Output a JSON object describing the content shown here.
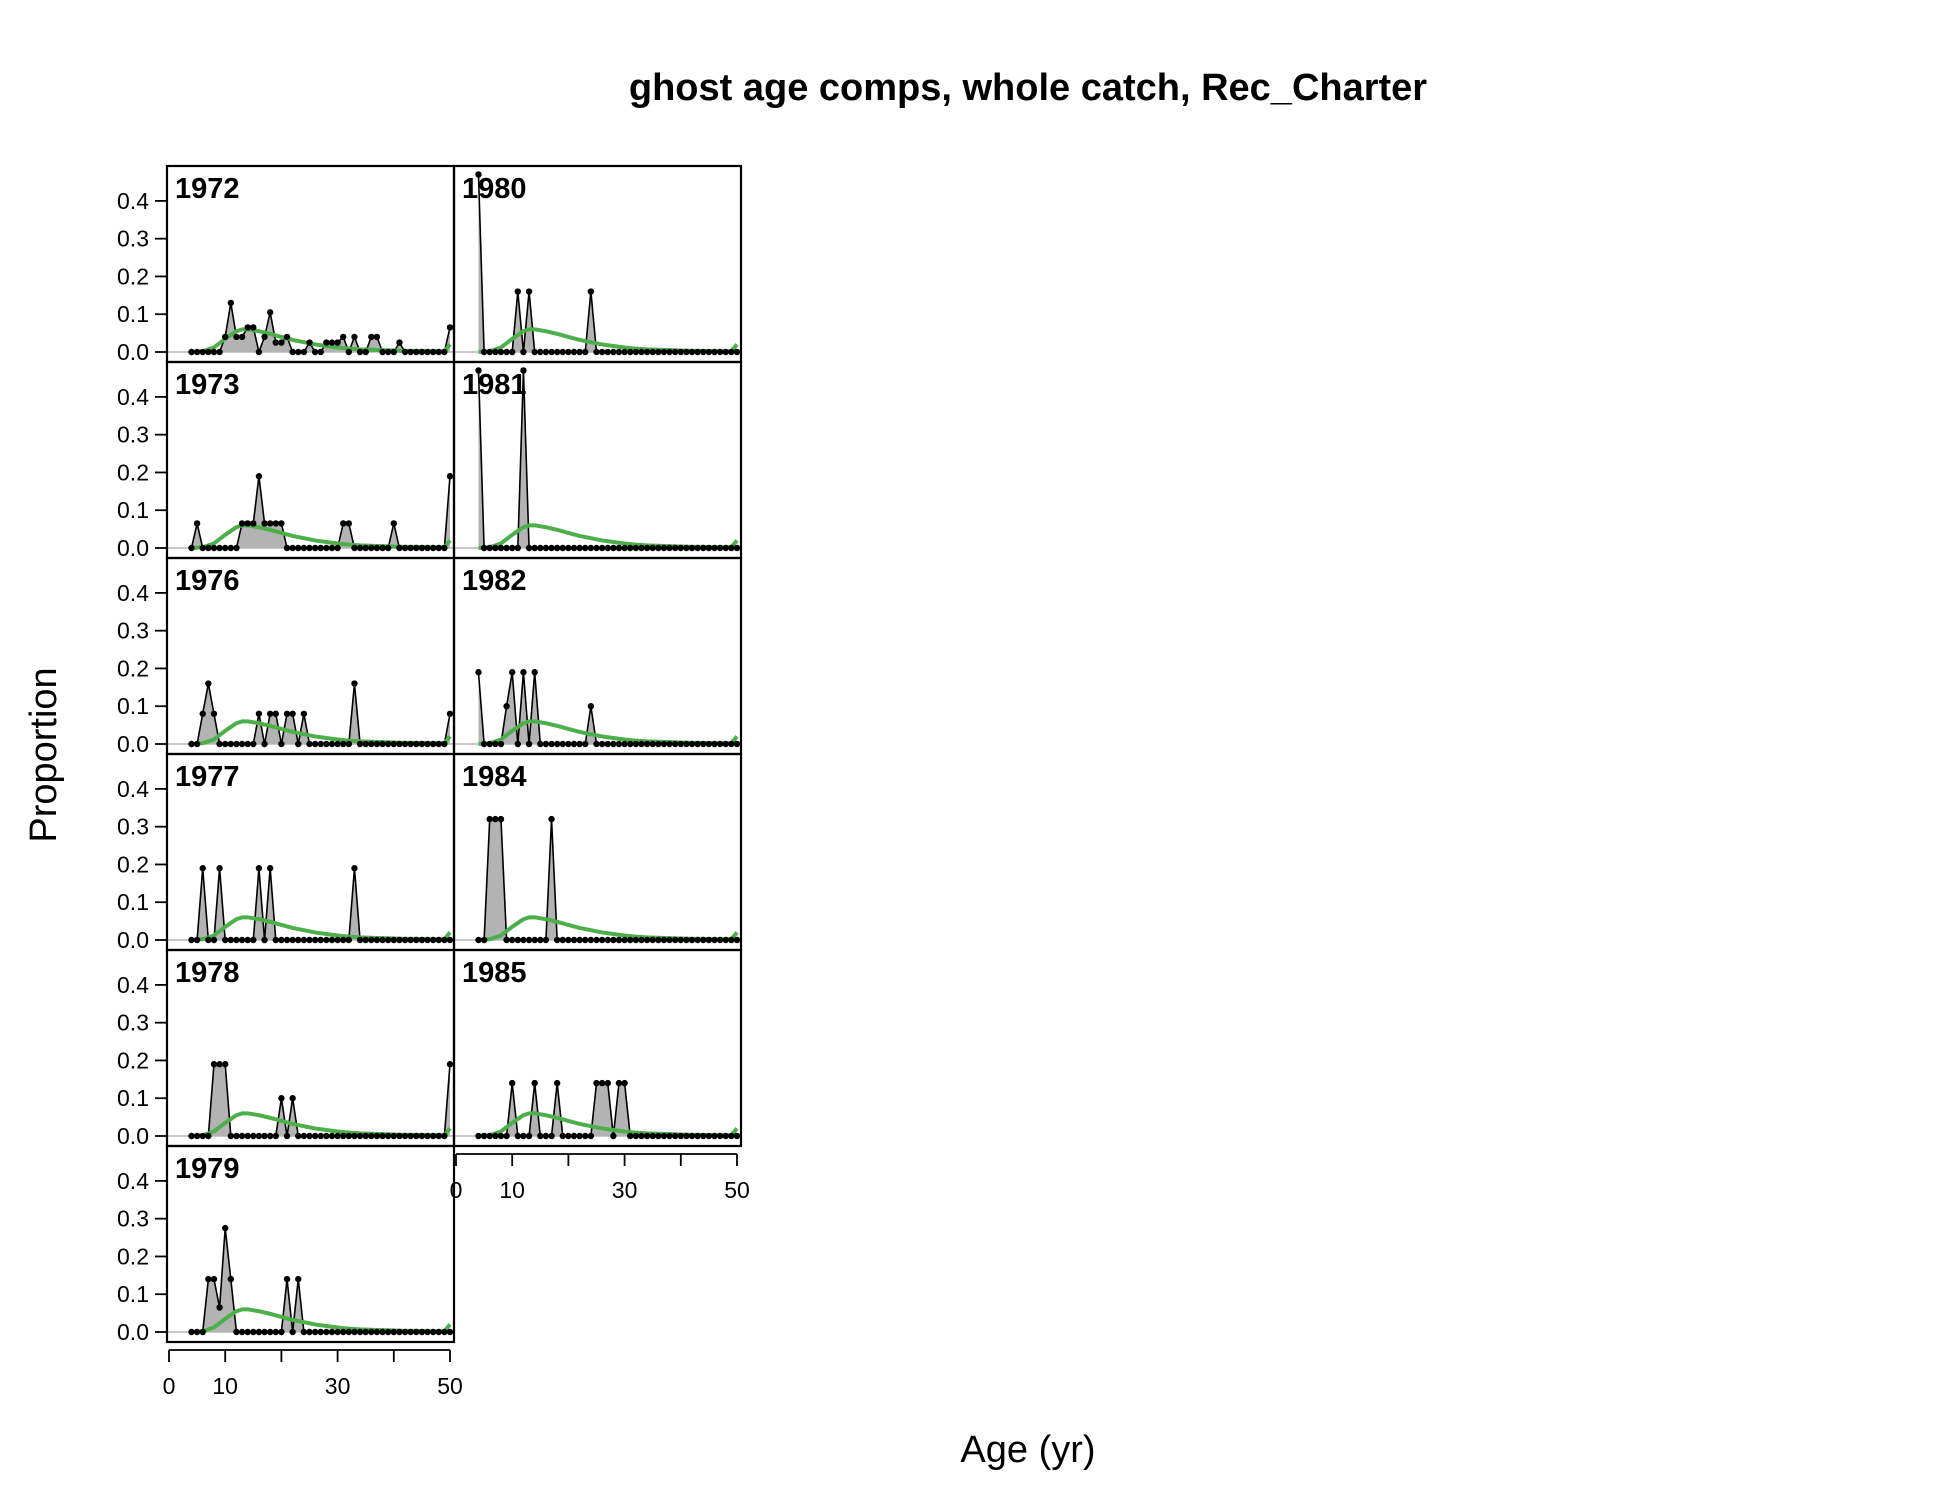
{
  "chart_data": {
    "type": "area",
    "title": "ghost age comps, whole catch, Rec_Charter",
    "xlabel": "Age (yr)",
    "ylabel": "Proportion",
    "xlim": [
      0,
      50
    ],
    "ylim": [
      0,
      0.45
    ],
    "x_ticks": [
      0,
      10,
      30,
      50
    ],
    "y_ticks": [
      "0.0",
      "0.1",
      "0.2",
      "0.3",
      "0.4"
    ],
    "ages": [
      4,
      50
    ],
    "colors": {
      "observed_fill": "#b3b3b3",
      "observed_line": "#000000",
      "expected_line": "#4daf4a"
    },
    "panels": [
      {
        "year": "1972",
        "observed": [
          [
            4,
            0
          ],
          [
            5,
            0
          ],
          [
            6,
            0
          ],
          [
            7,
            0
          ],
          [
            8,
            0
          ],
          [
            9,
            0
          ],
          [
            10,
            0.04
          ],
          [
            11,
            0.13
          ],
          [
            12,
            0.04
          ],
          [
            13,
            0.04
          ],
          [
            14,
            0.065
          ],
          [
            15,
            0.065
          ],
          [
            16,
            0
          ],
          [
            17,
            0.04
          ],
          [
            18,
            0.105
          ],
          [
            19,
            0.025
          ],
          [
            20,
            0.025
          ],
          [
            21,
            0.04
          ],
          [
            22,
            0
          ],
          [
            23,
            0
          ],
          [
            24,
            0
          ],
          [
            25,
            0.025
          ],
          [
            26,
            0
          ],
          [
            27,
            0
          ],
          [
            28,
            0.025
          ],
          [
            29,
            0.025
          ],
          [
            30,
            0.025
          ],
          [
            31,
            0.04
          ],
          [
            32,
            0
          ],
          [
            33,
            0.04
          ],
          [
            34,
            0
          ],
          [
            35,
            0
          ],
          [
            36,
            0.04
          ],
          [
            37,
            0.04
          ],
          [
            38,
            0
          ],
          [
            39,
            0
          ],
          [
            40,
            0
          ],
          [
            41,
            0.025
          ],
          [
            42,
            0
          ],
          [
            50,
            0.065
          ]
        ]
      },
      {
        "year": "1973",
        "observed": [
          [
            4,
            0
          ],
          [
            5,
            0.065
          ],
          [
            6,
            0
          ],
          [
            12,
            0
          ],
          [
            13,
            0.065
          ],
          [
            14,
            0.065
          ],
          [
            15,
            0.065
          ],
          [
            16,
            0.19
          ],
          [
            17,
            0.065
          ],
          [
            18,
            0.065
          ],
          [
            19,
            0.065
          ],
          [
            20,
            0.065
          ],
          [
            21,
            0
          ],
          [
            30,
            0
          ],
          [
            31,
            0.065
          ],
          [
            32,
            0.065
          ],
          [
            33,
            0
          ],
          [
            39,
            0
          ],
          [
            40,
            0.065
          ],
          [
            41,
            0
          ],
          [
            49,
            0
          ],
          [
            50,
            0.19
          ]
        ]
      },
      {
        "year": "1976",
        "observed": [
          [
            4,
            0
          ],
          [
            5,
            0
          ],
          [
            6,
            0.08
          ],
          [
            7,
            0.16
          ],
          [
            8,
            0.08
          ],
          [
            9,
            0
          ],
          [
            15,
            0
          ],
          [
            16,
            0.08
          ],
          [
            17,
            0
          ],
          [
            18,
            0.08
          ],
          [
            19,
            0.08
          ],
          [
            20,
            0
          ],
          [
            21,
            0.08
          ],
          [
            22,
            0.08
          ],
          [
            23,
            0
          ],
          [
            24,
            0.08
          ],
          [
            25,
            0
          ],
          [
            32,
            0
          ],
          [
            33,
            0.16
          ],
          [
            34,
            0
          ],
          [
            49,
            0
          ],
          [
            50,
            0.08
          ]
        ]
      },
      {
        "year": "1977",
        "observed": [
          [
            4,
            0
          ],
          [
            5,
            0
          ],
          [
            6,
            0.19
          ],
          [
            7,
            0
          ],
          [
            8,
            0
          ],
          [
            9,
            0.19
          ],
          [
            10,
            0
          ],
          [
            15,
            0
          ],
          [
            16,
            0.19
          ],
          [
            17,
            0
          ],
          [
            18,
            0.19
          ],
          [
            19,
            0
          ],
          [
            32,
            0
          ],
          [
            33,
            0.19
          ],
          [
            34,
            0
          ]
        ]
      },
      {
        "year": "1978",
        "observed": [
          [
            4,
            0
          ],
          [
            5,
            0
          ],
          [
            6,
            0
          ],
          [
            7,
            0
          ],
          [
            8,
            0.19
          ],
          [
            9,
            0.19
          ],
          [
            10,
            0.19
          ],
          [
            11,
            0
          ],
          [
            19,
            0
          ],
          [
            20,
            0.1
          ],
          [
            21,
            0
          ],
          [
            22,
            0.1
          ],
          [
            23,
            0
          ],
          [
            49,
            0
          ],
          [
            50,
            0.19
          ]
        ]
      },
      {
        "year": "1979",
        "observed": [
          [
            4,
            0
          ],
          [
            5,
            0
          ],
          [
            6,
            0
          ],
          [
            7,
            0.14
          ],
          [
            8,
            0.14
          ],
          [
            9,
            0.065
          ],
          [
            10,
            0.275
          ],
          [
            11,
            0.14
          ],
          [
            12,
            0
          ],
          [
            20,
            0
          ],
          [
            21,
            0.14
          ],
          [
            22,
            0
          ],
          [
            23,
            0.14
          ],
          [
            24,
            0
          ]
        ]
      },
      {
        "year": "1980",
        "observed": [
          [
            4,
            0.47
          ],
          [
            5,
            0
          ],
          [
            10,
            0
          ],
          [
            11,
            0.16
          ],
          [
            12,
            0
          ],
          [
            13,
            0.16
          ],
          [
            14,
            0
          ],
          [
            23,
            0
          ],
          [
            24,
            0.16
          ],
          [
            25,
            0
          ]
        ]
      },
      {
        "year": "1981",
        "observed": [
          [
            4,
            0.47
          ],
          [
            5,
            0
          ],
          [
            11,
            0
          ],
          [
            12,
            0.47
          ],
          [
            13,
            0
          ]
        ]
      },
      {
        "year": "1982",
        "observed": [
          [
            4,
            0.19
          ],
          [
            5,
            0
          ],
          [
            8,
            0
          ],
          [
            9,
            0.1
          ],
          [
            10,
            0.19
          ],
          [
            11,
            0
          ],
          [
            12,
            0.19
          ],
          [
            13,
            0
          ],
          [
            14,
            0.19
          ],
          [
            15,
            0
          ],
          [
            23,
            0
          ],
          [
            24,
            0.1
          ],
          [
            25,
            0
          ]
        ]
      },
      {
        "year": "1984",
        "observed": [
          [
            4,
            0
          ],
          [
            5,
            0
          ],
          [
            6,
            0.32
          ],
          [
            7,
            0.32
          ],
          [
            8,
            0.32
          ],
          [
            9,
            0
          ],
          [
            16,
            0
          ],
          [
            17,
            0.32
          ],
          [
            18,
            0
          ]
        ]
      },
      {
        "year": "1985",
        "observed": [
          [
            4,
            0
          ],
          [
            5,
            0
          ],
          [
            9,
            0
          ],
          [
            10,
            0.14
          ],
          [
            11,
            0
          ],
          [
            13,
            0
          ],
          [
            14,
            0.14
          ],
          [
            15,
            0
          ],
          [
            17,
            0
          ],
          [
            18,
            0.14
          ],
          [
            19,
            0
          ],
          [
            24,
            0
          ],
          [
            25,
            0.14
          ],
          [
            26,
            0.14
          ],
          [
            27,
            0.14
          ],
          [
            28,
            0
          ],
          [
            29,
            0.14
          ],
          [
            30,
            0.14
          ],
          [
            31,
            0
          ]
        ]
      }
    ],
    "expected_curve": [
      [
        4,
        0
      ],
      [
        6,
        0.002
      ],
      [
        8,
        0.012
      ],
      [
        10,
        0.035
      ],
      [
        12,
        0.055
      ],
      [
        13,
        0.06
      ],
      [
        14,
        0.06
      ],
      [
        16,
        0.055
      ],
      [
        18,
        0.048
      ],
      [
        20,
        0.04
      ],
      [
        22,
        0.032
      ],
      [
        24,
        0.026
      ],
      [
        26,
        0.02
      ],
      [
        28,
        0.016
      ],
      [
        30,
        0.012
      ],
      [
        32,
        0.009
      ],
      [
        34,
        0.007
      ],
      [
        36,
        0.006
      ],
      [
        38,
        0.005
      ],
      [
        40,
        0.004
      ],
      [
        42,
        0.003
      ],
      [
        44,
        0.003
      ],
      [
        46,
        0.002
      ],
      [
        48,
        0.002
      ],
      [
        49,
        0.002
      ],
      [
        50,
        0.02
      ]
    ]
  }
}
